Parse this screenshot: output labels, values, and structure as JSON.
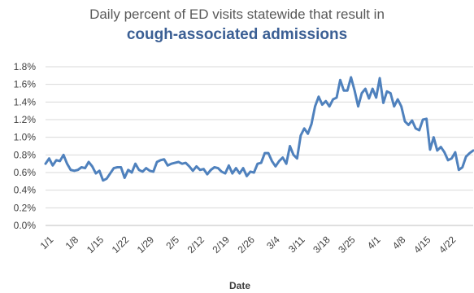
{
  "chart_data": {
    "type": "line",
    "title": "Daily percent of ED visits statewide that result in",
    "subtitle": "cough-associated admissions",
    "xlabel": "Date",
    "ylabel": "",
    "ylim": [
      0,
      1.8
    ],
    "yticks": [
      0,
      0.2,
      0.4,
      0.6,
      0.8,
      1.0,
      1.2,
      1.4,
      1.6,
      1.8
    ],
    "ytick_labels": [
      "0.0%",
      "0.2%",
      "0.4%",
      "0.6%",
      "0.8%",
      "1.0%",
      "1.2%",
      "1.4%",
      "1.6%",
      "1.8%"
    ],
    "xtick_labels": [
      "1/1",
      "1/8",
      "1/15",
      "1/22",
      "1/29",
      "2/5",
      "2/12",
      "2/19",
      "2/26",
      "3/4",
      "3/11",
      "3/18",
      "3/25",
      "4/1",
      "4/8",
      "4/15",
      "4/22"
    ],
    "grid": true,
    "line_color": "#4f81bd",
    "series": [
      {
        "name": "",
        "values": [
          0.7,
          0.76,
          0.68,
          0.74,
          0.73,
          0.8,
          0.7,
          0.63,
          0.62,
          0.63,
          0.66,
          0.65,
          0.72,
          0.67,
          0.59,
          0.62,
          0.51,
          0.53,
          0.59,
          0.65,
          0.66,
          0.66,
          0.54,
          0.63,
          0.6,
          0.7,
          0.63,
          0.61,
          0.65,
          0.62,
          0.61,
          0.72,
          0.74,
          0.75,
          0.68,
          0.7,
          0.71,
          0.72,
          0.7,
          0.71,
          0.67,
          0.62,
          0.67,
          0.63,
          0.64,
          0.58,
          0.63,
          0.66,
          0.65,
          0.61,
          0.59,
          0.68,
          0.59,
          0.65,
          0.59,
          0.65,
          0.56,
          0.61,
          0.6,
          0.7,
          0.71,
          0.82,
          0.82,
          0.73,
          0.67,
          0.73,
          0.77,
          0.7,
          0.9,
          0.8,
          0.76,
          1.02,
          1.1,
          1.04,
          1.15,
          1.35,
          1.46,
          1.37,
          1.41,
          1.35,
          1.43,
          1.45,
          1.65,
          1.53,
          1.53,
          1.68,
          1.53,
          1.35,
          1.5,
          1.55,
          1.44,
          1.55,
          1.45,
          1.67,
          1.39,
          1.52,
          1.5,
          1.35,
          1.43,
          1.35,
          1.18,
          1.14,
          1.19,
          1.1,
          1.08,
          1.2,
          1.21,
          0.86,
          1.0,
          0.85,
          0.89,
          0.83,
          0.74,
          0.76,
          0.83,
          0.63,
          0.66,
          0.78,
          0.82,
          0.85
        ]
      }
    ]
  }
}
